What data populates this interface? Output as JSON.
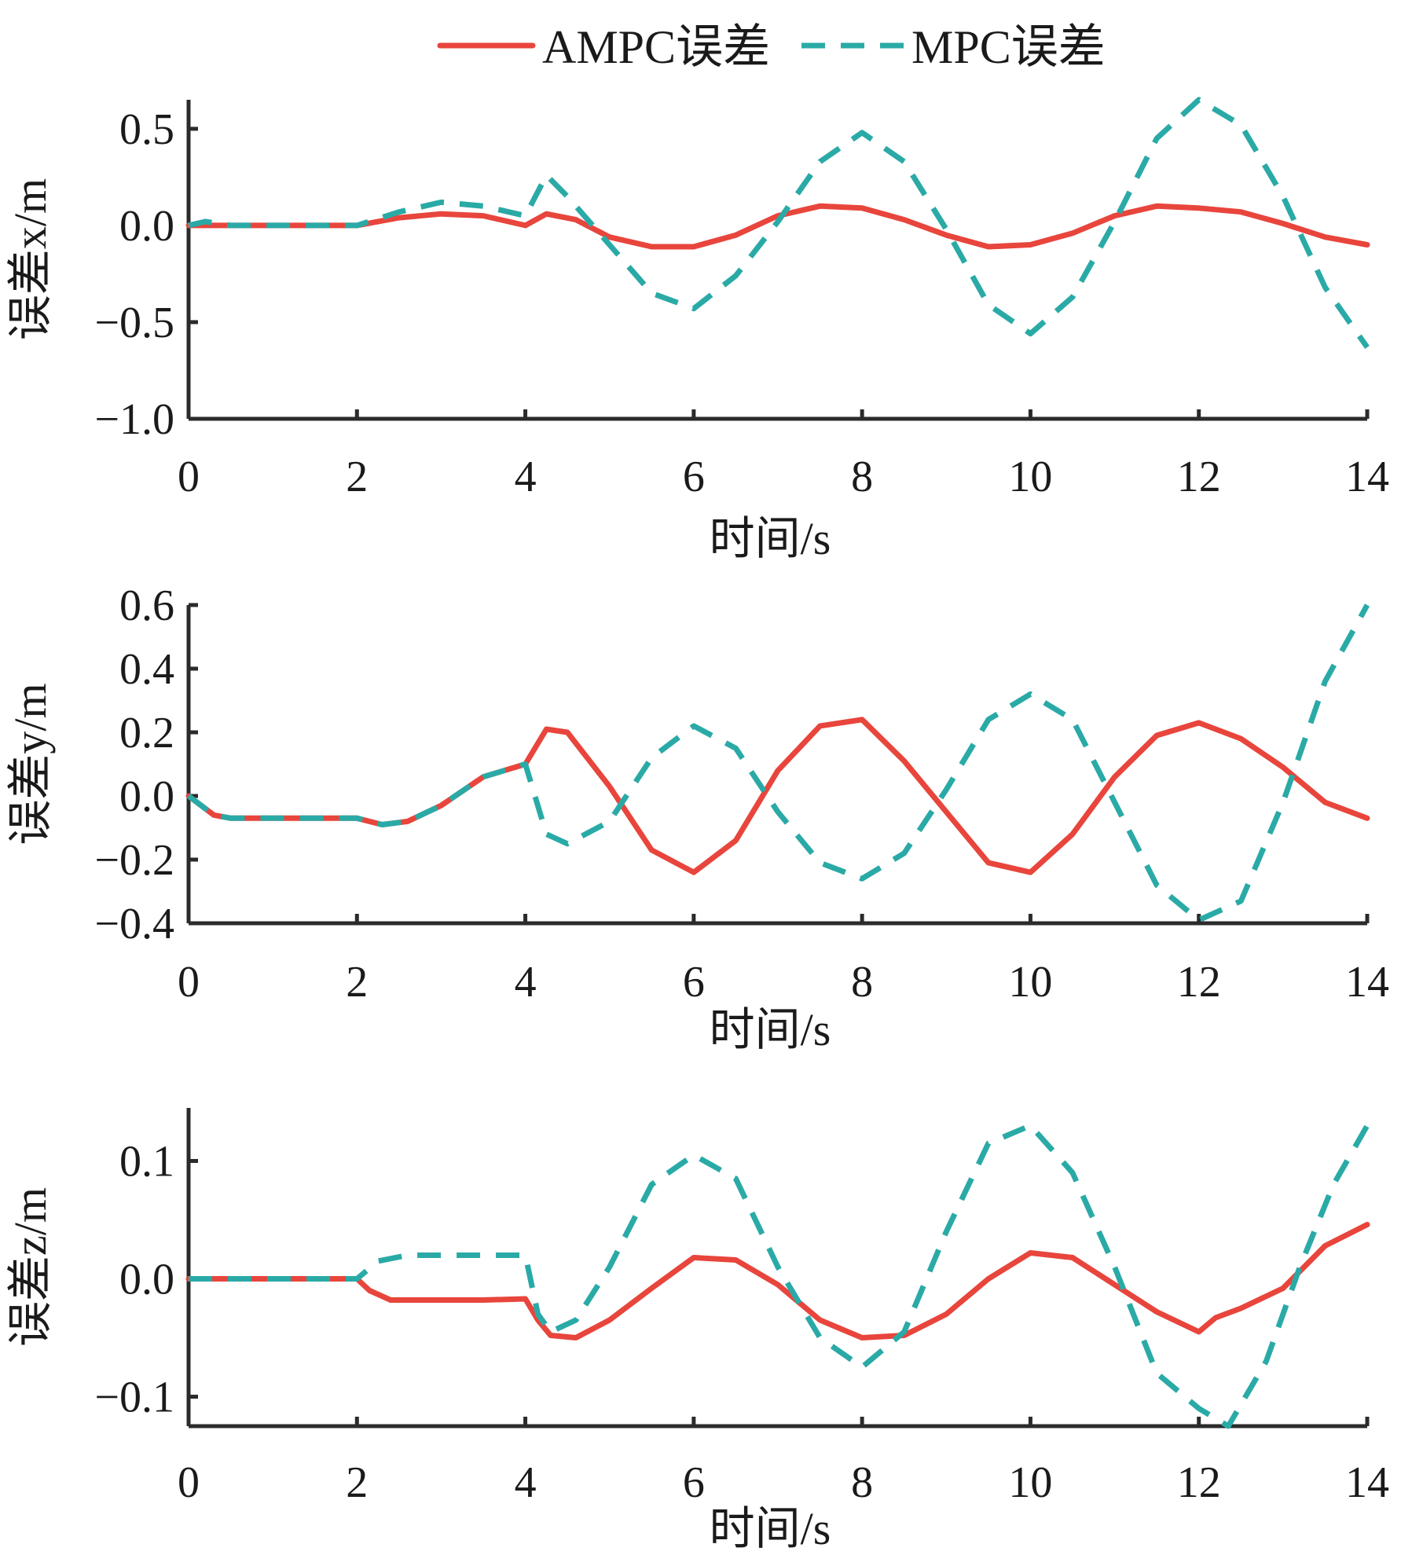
{
  "legend": [
    {
      "name": "AMPC误差",
      "color": "#e8453c",
      "style": "solid"
    },
    {
      "name": "MPC误差",
      "color": "#2aaaa6",
      "style": "dashed"
    }
  ],
  "chart_data": [
    {
      "type": "line",
      "ylabel": "误差x/m",
      "xlabel": "时间/s",
      "xlim": [
        0,
        14
      ],
      "ylim": [
        -1.0,
        0.65
      ],
      "xticks": [
        0,
        2,
        4,
        6,
        8,
        10,
        12,
        14
      ],
      "xtick_labels": [
        "0",
        "2",
        "4",
        "6",
        "8",
        "10",
        "12",
        "14"
      ],
      "yticks": [
        -1.0,
        -0.5,
        0.0,
        0.5
      ],
      "ytick_labels": [
        "−1.0",
        "−0.5",
        "0.0",
        "0.5"
      ],
      "series": [
        {
          "name": "AMPC误差",
          "x": [
            0,
            0.5,
            1,
            1.5,
            2,
            2.5,
            3,
            3.5,
            4,
            4.25,
            4.6,
            5,
            5.5,
            6,
            6.5,
            7,
            7.5,
            8,
            8.5,
            9,
            9.5,
            10,
            10.5,
            11,
            11.5,
            12,
            12.5,
            13,
            13.5,
            14
          ],
          "y": [
            0,
            0,
            0,
            0,
            0,
            0.04,
            0.06,
            0.05,
            0,
            0.06,
            0.03,
            -0.06,
            -0.11,
            -0.11,
            -0.05,
            0.05,
            0.1,
            0.09,
            0.03,
            -0.05,
            -0.11,
            -0.1,
            -0.04,
            0.05,
            0.1,
            0.09,
            0.07,
            0.01,
            -0.06,
            -0.1
          ]
        },
        {
          "name": "MPC误差",
          "x": [
            0,
            0.2,
            0.5,
            1,
            1.5,
            2,
            2.5,
            3,
            3.5,
            4,
            4.25,
            4.5,
            5,
            5.5,
            6,
            6.5,
            7,
            7.5,
            8,
            8.5,
            9,
            9.5,
            10,
            10.5,
            11,
            11.5,
            12,
            12.5,
            13,
            13.5,
            14
          ],
          "y": [
            0,
            0.02,
            0,
            0,
            0,
            0,
            0.07,
            0.12,
            0.1,
            0.05,
            0.26,
            0.15,
            -0.1,
            -0.35,
            -0.43,
            -0.26,
            0.02,
            0.33,
            0.48,
            0.33,
            -0.02,
            -0.41,
            -0.56,
            -0.37,
            0.02,
            0.45,
            0.65,
            0.52,
            0.15,
            -0.32,
            -0.63
          ]
        }
      ]
    },
    {
      "type": "line",
      "ylabel": "误差y/m",
      "xlabel": "时间/s",
      "xlim": [
        0,
        14
      ],
      "ylim": [
        -0.4,
        0.6
      ],
      "xticks": [
        0,
        2,
        4,
        6,
        8,
        10,
        12,
        14
      ],
      "xtick_labels": [
        "0",
        "2",
        "4",
        "6",
        "8",
        "10",
        "12",
        "14"
      ],
      "yticks": [
        -0.4,
        -0.2,
        0.0,
        0.2,
        0.4,
        0.6
      ],
      "ytick_labels": [
        "−0.4",
        "−0.2",
        "0.0",
        "0.2",
        "0.4",
        "0.6"
      ],
      "series": [
        {
          "name": "AMPC误差",
          "x": [
            0,
            0.15,
            0.3,
            0.5,
            1,
            1.5,
            2,
            2.3,
            2.6,
            3,
            3.5,
            4,
            4.25,
            4.5,
            5,
            5.5,
            6,
            6.5,
            7,
            7.5,
            8,
            8.5,
            9,
            9.5,
            10,
            10.5,
            11,
            11.5,
            12,
            12.5,
            13,
            13.5,
            14
          ],
          "y": [
            0,
            -0.03,
            -0.06,
            -0.07,
            -0.07,
            -0.07,
            -0.07,
            -0.09,
            -0.08,
            -0.03,
            0.06,
            0.1,
            0.21,
            0.2,
            0.03,
            -0.17,
            -0.24,
            -0.14,
            0.08,
            0.22,
            0.24,
            0.11,
            -0.05,
            -0.21,
            -0.24,
            -0.12,
            0.06,
            0.19,
            0.23,
            0.18,
            0.09,
            -0.02,
            -0.07
          ]
        },
        {
          "name": "MPC误差",
          "x": [
            0,
            0.15,
            0.3,
            0.5,
            1,
            1.5,
            2,
            2.3,
            2.6,
            3,
            3.5,
            4,
            4.25,
            4.5,
            5,
            5.5,
            6,
            6.5,
            7,
            7.5,
            8,
            8.5,
            9,
            9.5,
            10,
            10.5,
            11,
            11.5,
            12,
            12.5,
            13,
            13.5,
            14
          ],
          "y": [
            0,
            -0.03,
            -0.06,
            -0.07,
            -0.07,
            -0.07,
            -0.07,
            -0.09,
            -0.08,
            -0.03,
            0.06,
            0.1,
            -0.12,
            -0.15,
            -0.08,
            0.12,
            0.22,
            0.15,
            -0.05,
            -0.21,
            -0.26,
            -0.18,
            0.02,
            0.24,
            0.32,
            0.24,
            -0.02,
            -0.28,
            -0.39,
            -0.33,
            -0.02,
            0.36,
            0.6
          ]
        }
      ]
    },
    {
      "type": "line",
      "ylabel": "误差z/m",
      "xlabel": "时间/s",
      "xlim": [
        0,
        14
      ],
      "ylim": [
        -0.125,
        0.145
      ],
      "xticks": [
        0,
        2,
        4,
        6,
        8,
        10,
        12,
        14
      ],
      "xtick_labels": [
        "0",
        "2",
        "4",
        "6",
        "8",
        "10",
        "12",
        "14"
      ],
      "yticks": [
        -0.1,
        0.0,
        0.1
      ],
      "ytick_labels": [
        "−0.1",
        "0.0",
        "0.1"
      ],
      "series": [
        {
          "name": "AMPC误差",
          "x": [
            0,
            0.5,
            1,
            1.5,
            2,
            2.15,
            2.4,
            3,
            3.5,
            4,
            4.15,
            4.3,
            4.6,
            5,
            5.5,
            6,
            6.5,
            7,
            7.5,
            8,
            8.5,
            9,
            9.5,
            10,
            10.5,
            11,
            11.5,
            12,
            12.2,
            12.5,
            13,
            13.5,
            14
          ],
          "y": [
            0,
            0,
            0,
            0,
            0,
            -0.01,
            -0.018,
            -0.018,
            -0.018,
            -0.017,
            -0.035,
            -0.048,
            -0.05,
            -0.035,
            -0.008,
            0.018,
            0.016,
            -0.005,
            -0.035,
            -0.05,
            -0.048,
            -0.03,
            0,
            0.022,
            0.018,
            -0.005,
            -0.028,
            -0.045,
            -0.033,
            -0.025,
            -0.008,
            0.028,
            0.046
          ]
        },
        {
          "name": "MPC误差",
          "x": [
            0,
            0.5,
            1,
            1.5,
            2,
            2.25,
            2.6,
            3,
            3.5,
            4,
            4.15,
            4.3,
            4.6,
            5,
            5.5,
            6,
            6.5,
            7,
            7.5,
            8,
            8.5,
            9,
            9.5,
            10,
            10.5,
            11,
            11.5,
            12,
            12.35,
            12.8,
            13.2,
            13.6,
            14
          ],
          "y": [
            0,
            0,
            0,
            0,
            0,
            0.015,
            0.02,
            0.02,
            0.02,
            0.02,
            -0.03,
            -0.045,
            -0.035,
            0.01,
            0.08,
            0.105,
            0.085,
            0.01,
            -0.05,
            -0.075,
            -0.045,
            0.04,
            0.115,
            0.13,
            0.09,
            0.01,
            -0.08,
            -0.11,
            -0.125,
            -0.07,
            0.01,
            0.08,
            0.13
          ]
        }
      ]
    }
  ]
}
